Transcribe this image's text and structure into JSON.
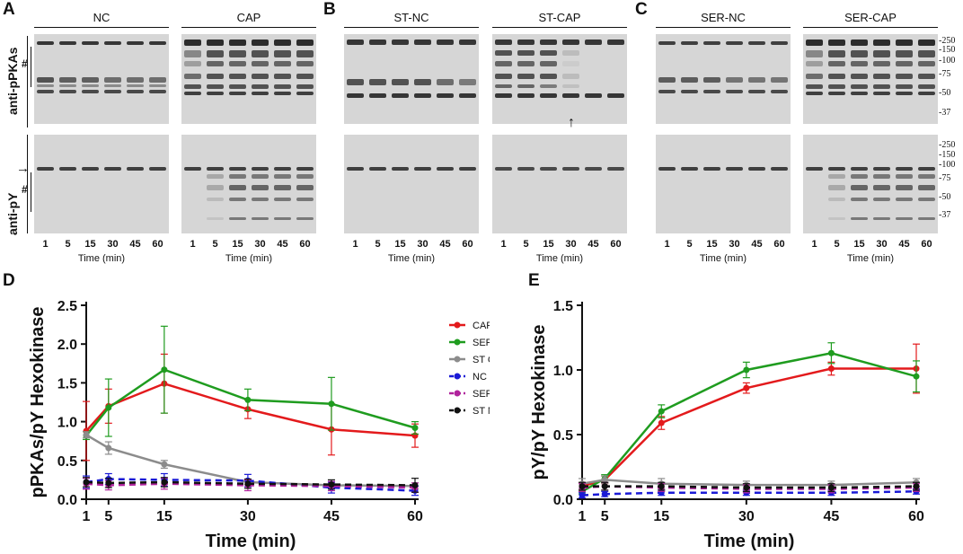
{
  "panel_labels": {
    "A": "A",
    "B": "B",
    "C": "C",
    "D": "D",
    "E": "E"
  },
  "blots": {
    "groups": [
      {
        "id": "nc",
        "title": "NC"
      },
      {
        "id": "cap",
        "title": "CAP"
      },
      {
        "id": "st_nc",
        "title": "ST-NC"
      },
      {
        "id": "st_cap",
        "title": "ST-CAP"
      },
      {
        "id": "ser_nc",
        "title": "SER-NC"
      },
      {
        "id": "ser_cap",
        "title": "SER-CAP"
      }
    ],
    "lane_labels": [
      "1",
      "5",
      "15",
      "30",
      "45",
      "60"
    ],
    "x_title": "Time (min)",
    "row_labels": {
      "top": "anti-pPKAs",
      "bottom": "anti-pY"
    },
    "hash": "#",
    "arrow_right": "→",
    "arrow_up": "↑",
    "mw_top": [
      "-250",
      "-150",
      "-100",
      "-75",
      "-50",
      "-37"
    ],
    "mw_bottom": [
      "-250",
      "-150",
      "-100",
      "-75",
      "-50",
      "-37"
    ]
  },
  "chart_data": [
    {
      "type": "line",
      "panel": "D",
      "ylabel": "pPKAs/pY Hexokinase",
      "xlabel": "Time (min)",
      "x": [
        1,
        5,
        15,
        30,
        45,
        60
      ],
      "xticks": [
        "1",
        "5",
        "15",
        "30",
        "45",
        "60"
      ],
      "ylim": [
        0,
        2.5
      ],
      "yticks": [
        "0.0",
        "0.5",
        "1.0",
        "1.5",
        "2.0",
        "2.5"
      ],
      "legend_position": "right",
      "series": [
        {
          "name": "CAP",
          "color": "#e31a1c",
          "dashed": false,
          "values": [
            0.88,
            1.2,
            1.49,
            1.16,
            0.9,
            0.82
          ],
          "errors": [
            0.38,
            0.22,
            0.38,
            0.12,
            0.33,
            0.15
          ]
        },
        {
          "name": "SER CAP",
          "color": "#1f9c1f",
          "dashed": false,
          "values": [
            0.82,
            1.18,
            1.67,
            1.28,
            1.23,
            0.92
          ],
          "errors": [
            0.05,
            0.37,
            0.56,
            0.14,
            0.34,
            0.08
          ]
        },
        {
          "name": "ST CAP",
          "color": "#8c8c8c",
          "dashed": false,
          "values": [
            0.83,
            0.66,
            0.45,
            0.22,
            0.18,
            0.17
          ],
          "errors": [
            0.04,
            0.08,
            0.05,
            0.03,
            0.03,
            0.04
          ]
        },
        {
          "name": "NC",
          "color": "#1a1ad6",
          "dashed": true,
          "values": [
            0.22,
            0.26,
            0.25,
            0.24,
            0.15,
            0.11
          ],
          "errors": [
            0.08,
            0.07,
            0.08,
            0.08,
            0.07,
            0.06
          ]
        },
        {
          "name": "SER NC",
          "color": "#b0229c",
          "dashed": true,
          "values": [
            0.2,
            0.18,
            0.2,
            0.18,
            0.17,
            0.15
          ],
          "errors": [
            0.07,
            0.06,
            0.07,
            0.07,
            0.06,
            0.06
          ]
        },
        {
          "name": "ST NC",
          "color": "#111111",
          "dashed": true,
          "values": [
            0.22,
            0.21,
            0.22,
            0.2,
            0.19,
            0.18
          ],
          "errors": [
            0.06,
            0.06,
            0.06,
            0.06,
            0.06,
            0.09
          ]
        }
      ]
    },
    {
      "type": "line",
      "panel": "E",
      "ylabel": "pY/pY Hexokinase",
      "xlabel": "Time (min)",
      "x": [
        1,
        5,
        15,
        30,
        45,
        60
      ],
      "xticks": [
        "1",
        "5",
        "15",
        "30",
        "45",
        "60"
      ],
      "ylim": [
        0,
        1.5
      ],
      "yticks": [
        "0.0",
        "0.5",
        "1.0",
        "1.5"
      ],
      "series": [
        {
          "name": "CAP",
          "color": "#e31a1c",
          "dashed": false,
          "values": [
            0.1,
            0.15,
            0.59,
            0.86,
            1.01,
            1.01
          ],
          "errors": [
            0.03,
            0.03,
            0.05,
            0.04,
            0.05,
            0.19
          ]
        },
        {
          "name": "SER CAP",
          "color": "#1f9c1f",
          "dashed": false,
          "values": [
            0.06,
            0.16,
            0.68,
            1.0,
            1.13,
            0.95
          ],
          "errors": [
            0.02,
            0.03,
            0.05,
            0.06,
            0.08,
            0.12
          ]
        },
        {
          "name": "ST CAP",
          "color": "#8c8c8c",
          "dashed": false,
          "values": [
            0.12,
            0.15,
            0.12,
            0.11,
            0.11,
            0.13
          ],
          "errors": [
            0.04,
            0.03,
            0.04,
            0.03,
            0.03,
            0.03
          ]
        },
        {
          "name": "NC",
          "color": "#1a1ad6",
          "dashed": true,
          "values": [
            0.03,
            0.04,
            0.05,
            0.05,
            0.05,
            0.06
          ],
          "errors": [
            0.02,
            0.02,
            0.02,
            0.02,
            0.02,
            0.02
          ]
        },
        {
          "name": "SER NC",
          "color": "#b0229c",
          "dashed": true,
          "values": [
            0.09,
            0.1,
            0.09,
            0.08,
            0.08,
            0.09
          ],
          "errors": [
            0.03,
            0.03,
            0.03,
            0.03,
            0.03,
            0.03
          ]
        },
        {
          "name": "ST NC",
          "color": "#111111",
          "dashed": true,
          "values": [
            0.1,
            0.1,
            0.1,
            0.09,
            0.09,
            0.1
          ],
          "errors": [
            0.03,
            0.03,
            0.03,
            0.03,
            0.03,
            0.03
          ]
        }
      ]
    }
  ]
}
